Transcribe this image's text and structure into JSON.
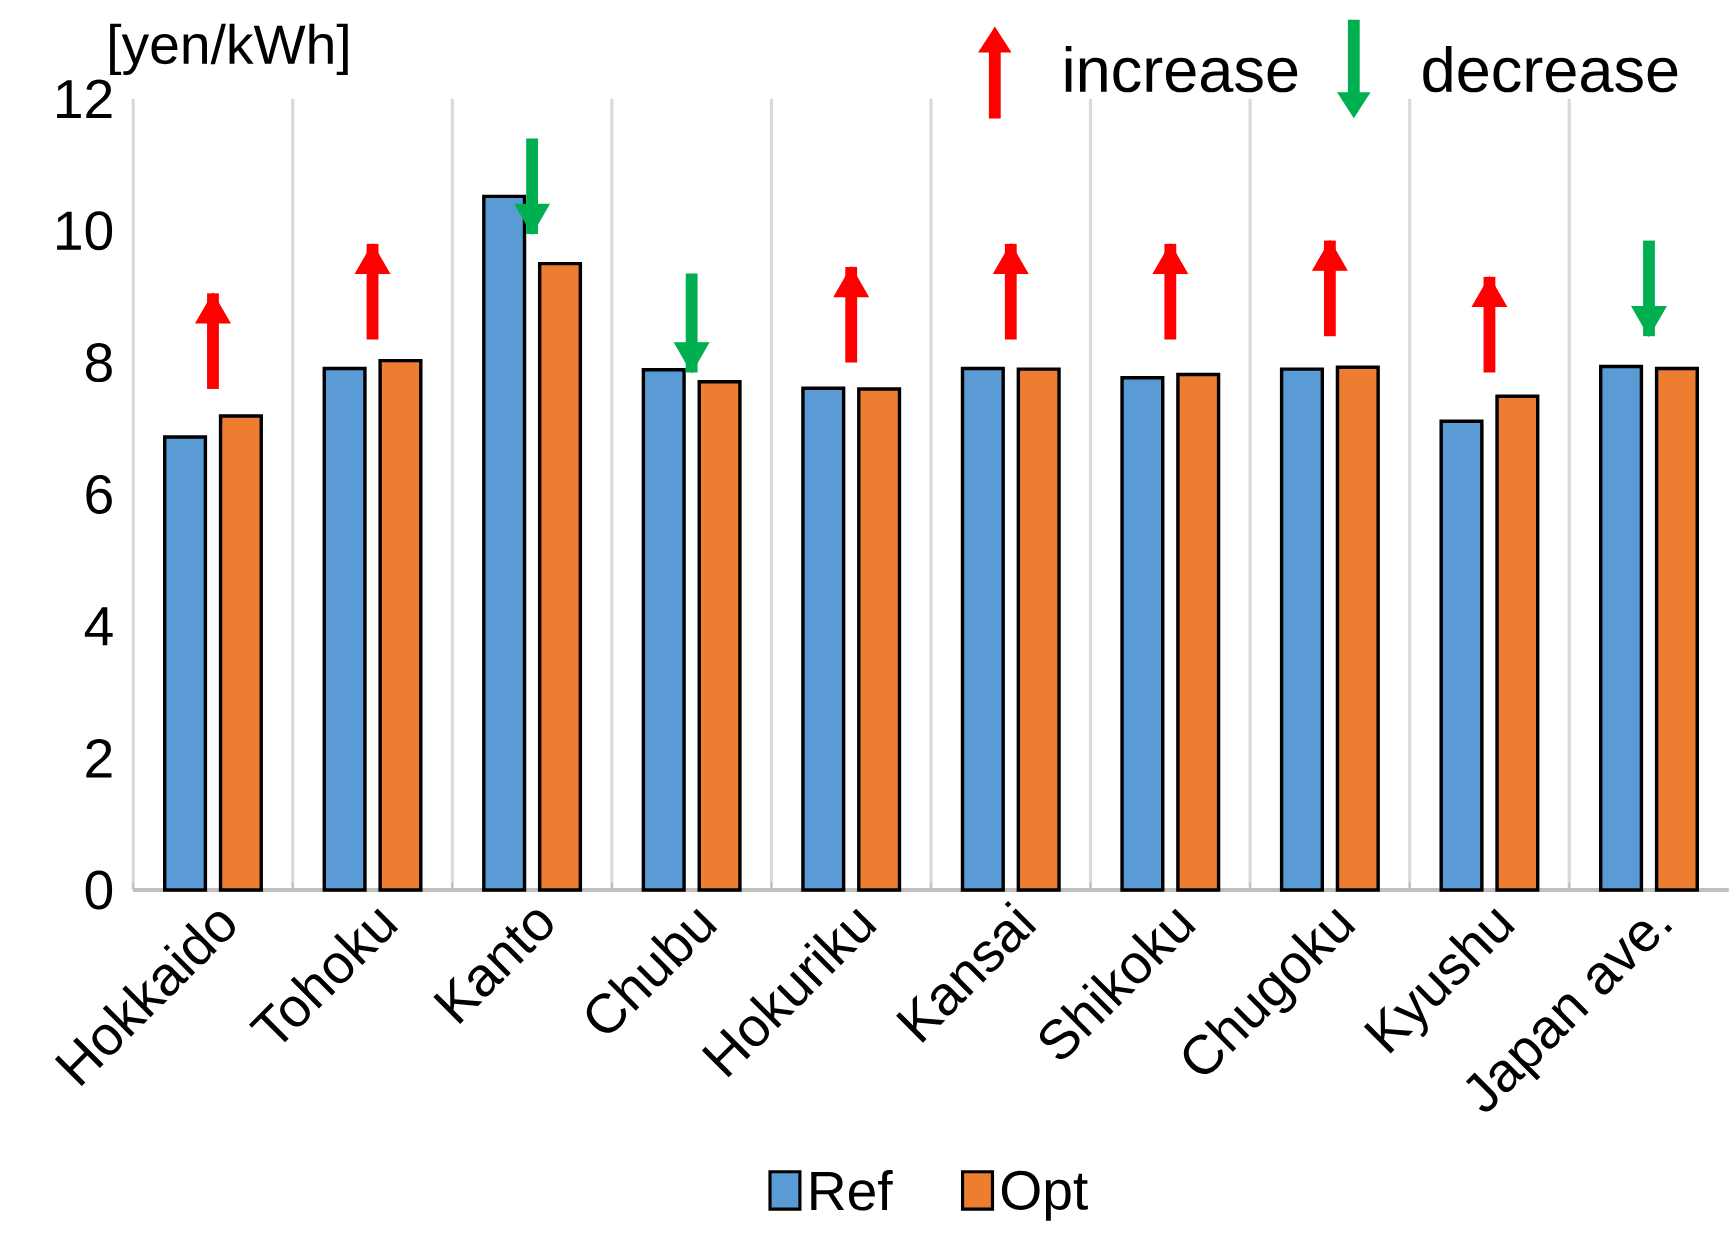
{
  "chart_data": {
    "type": "bar",
    "ylabel": "[yen/kWh]",
    "categories": [
      "Hokkaido",
      "Tohoku",
      "Kanto",
      "Chubu",
      "Hokuriku",
      "Kansai",
      "Shikoku",
      "Chugoku",
      "Kyushu",
      "Japan ave."
    ],
    "series": [
      {
        "name": "Ref",
        "color": "#5b9bd5",
        "values": [
          6.87,
          7.91,
          10.52,
          7.89,
          7.61,
          7.91,
          7.77,
          7.9,
          7.11,
          7.94
        ]
      },
      {
        "name": "Opt",
        "color": "#ed7d31",
        "values": [
          7.19,
          8.03,
          9.5,
          7.71,
          7.6,
          7.9,
          7.82,
          7.93,
          7.49,
          7.91
        ]
      },
      {
        "name": "increase",
        "type": "scatter",
        "marker": "triangle",
        "color": "#ff0000",
        "values": [
          8.75,
          9.5,
          null,
          null,
          9.15,
          9.5,
          9.5,
          9.55,
          9.0,
          null
        ],
        "errors": [
          [
            7.6,
            9.05
          ],
          [
            8.35,
            9.8
          ],
          null,
          null,
          [
            8.0,
            9.45
          ],
          [
            8.35,
            9.8
          ],
          [
            8.35,
            9.8
          ],
          [
            8.4,
            9.85
          ],
          [
            7.85,
            9.3
          ],
          null
        ]
      },
      {
        "name": "decrease",
        "type": "scatter",
        "marker": "triangle",
        "color": "#00b050",
        "values": [
          null,
          null,
          10.25,
          8.15,
          null,
          null,
          null,
          null,
          null,
          8.7
        ],
        "errors": [
          null,
          null,
          [
            9.95,
            11.4
          ],
          [
            7.85,
            9.35
          ],
          null,
          null,
          null,
          null,
          null,
          [
            8.4,
            9.85
          ]
        ]
      }
    ],
    "ylim": [
      0,
      12
    ],
    "yticks": [
      0,
      2,
      4,
      6,
      8,
      10,
      12
    ],
    "grid": "x",
    "legend": "bottom"
  }
}
